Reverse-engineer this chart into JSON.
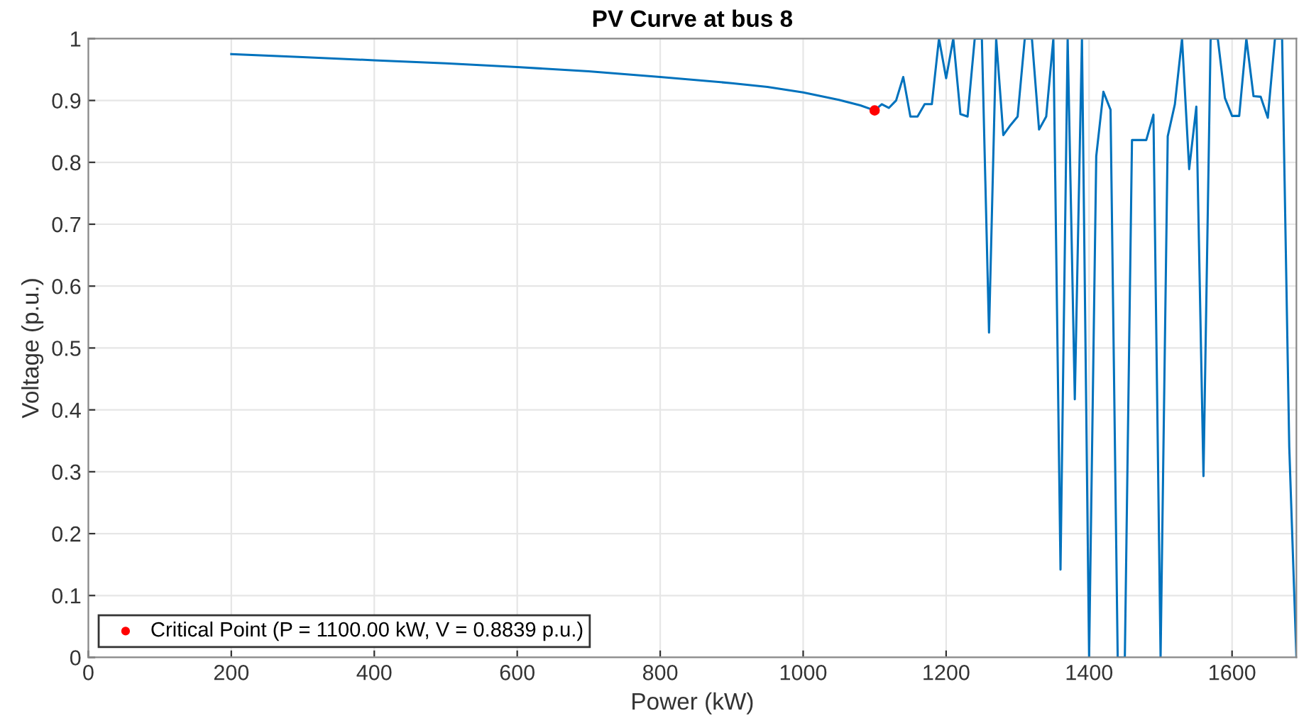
{
  "chart_data": {
    "type": "line",
    "title": "PV Curve at bus 8",
    "xlabel": "Power (kW)",
    "ylabel": "Voltage (p.u.)",
    "series": [
      {
        "color": "#0072bd",
        "x": [
          200,
          300,
          400,
          500,
          600,
          700,
          800,
          900,
          950,
          1000,
          1050,
          1080,
          1100,
          1110,
          1120,
          1130,
          1140,
          1150,
          1160,
          1170,
          1180,
          1190,
          1200,
          1210,
          1220,
          1230,
          1240,
          1250,
          1260,
          1270,
          1280,
          1290,
          1300,
          1310,
          1320,
          1330,
          1340,
          1350,
          1360,
          1370,
          1380,
          1390,
          1400,
          1410,
          1420,
          1430,
          1440,
          1450,
          1460,
          1470,
          1480,
          1490,
          1500,
          1510,
          1520,
          1530,
          1540,
          1550,
          1560,
          1570,
          1580,
          1590,
          1600,
          1610,
          1620,
          1630,
          1640,
          1650,
          1660,
          1670,
          1680,
          1690
        ],
        "values": [
          0.975,
          0.97,
          0.965,
          0.96,
          0.954,
          0.947,
          0.938,
          0.928,
          0.922,
          0.913,
          0.901,
          0.892,
          0.8839,
          0.894,
          0.888,
          0.9,
          0.938,
          0.874,
          0.874,
          0.894,
          0.894,
          1.0,
          0.936,
          1.0,
          0.878,
          0.874,
          1.0,
          1.0,
          0.525,
          1.0,
          0.844,
          0.86,
          0.874,
          1.0,
          1.0,
          0.853,
          0.874,
          1.0,
          0.142,
          1.0,
          0.417,
          1.0,
          0.0,
          0.81,
          0.914,
          0.885,
          0.0,
          0.0,
          0.836,
          0.836,
          0.836,
          0.877,
          0.0,
          0.842,
          0.894,
          1.0,
          0.789,
          0.89,
          0.293,
          1.0,
          1.0,
          0.904,
          0.875,
          0.875,
          1.0,
          0.907,
          0.906,
          0.872,
          1.0,
          1.0,
          0.34,
          0.0
        ]
      },
      {
        "type": "scatter",
        "name": "Critical Point (P = 1100.00 kW, V = 0.8839 p.u.)",
        "color": "#ff0000",
        "x": [
          1100
        ],
        "values": [
          0.8839
        ]
      }
    ],
    "xlim": [
      0,
      1690
    ],
    "ylim": [
      0,
      1
    ],
    "xticks": [
      0,
      200,
      400,
      600,
      800,
      1000,
      1200,
      1400,
      1600
    ],
    "yticks": [
      0,
      0.1,
      0.2,
      0.3,
      0.4,
      0.5,
      0.6,
      0.7,
      0.8,
      0.9,
      1
    ],
    "grid": true,
    "legend": "bottom left"
  }
}
